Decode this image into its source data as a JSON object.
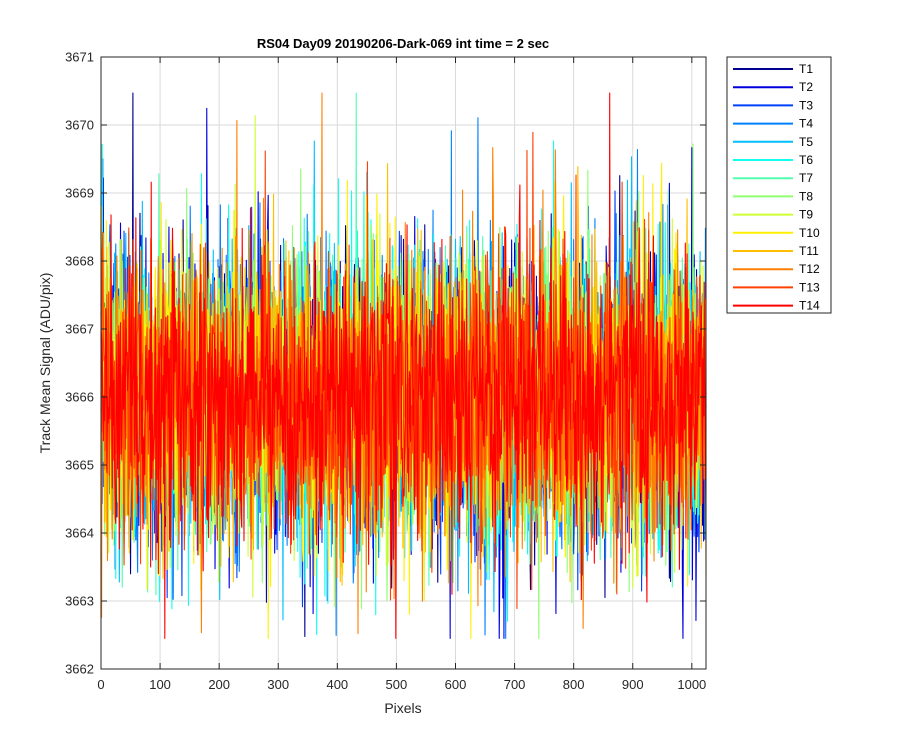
{
  "chart_data": {
    "type": "line",
    "title": "RS04 Day09 20190206-Dark-069 int time = 2 sec",
    "xlabel": "Pixels",
    "ylabel": "Track Mean Signal (ADU/pix)",
    "xlim": [
      0,
      1024
    ],
    "ylim": [
      3662,
      3671
    ],
    "xticks": [
      0,
      100,
      200,
      300,
      400,
      500,
      600,
      700,
      800,
      900,
      1000
    ],
    "yticks": [
      3662,
      3663,
      3664,
      3665,
      3666,
      3667,
      3668,
      3669,
      3670,
      3671
    ],
    "grid": true,
    "legend_position": "outside-top-right",
    "noise_level": {
      "mean": 3666.0,
      "typical_spread": 1.1,
      "min_observed": 3662.45,
      "max_observed": 3670.47
    },
    "series": [
      {
        "name": "T1",
        "color": "#00008F"
      },
      {
        "name": "T2",
        "color": "#0000DF"
      },
      {
        "name": "T3",
        "color": "#0040FF"
      },
      {
        "name": "T4",
        "color": "#0080FF"
      },
      {
        "name": "T5",
        "color": "#00BFFF"
      },
      {
        "name": "T6",
        "color": "#10FFEF"
      },
      {
        "name": "T7",
        "color": "#50FFAF"
      },
      {
        "name": "T8",
        "color": "#8FFF70"
      },
      {
        "name": "T9",
        "color": "#CFFF30"
      },
      {
        "name": "T10",
        "color": "#FFEF00"
      },
      {
        "name": "T11",
        "color": "#FFBF00"
      },
      {
        "name": "T12",
        "color": "#FF8000"
      },
      {
        "name": "T13",
        "color": "#FF4000"
      },
      {
        "name": "T14",
        "color": "#FF0000"
      }
    ]
  }
}
